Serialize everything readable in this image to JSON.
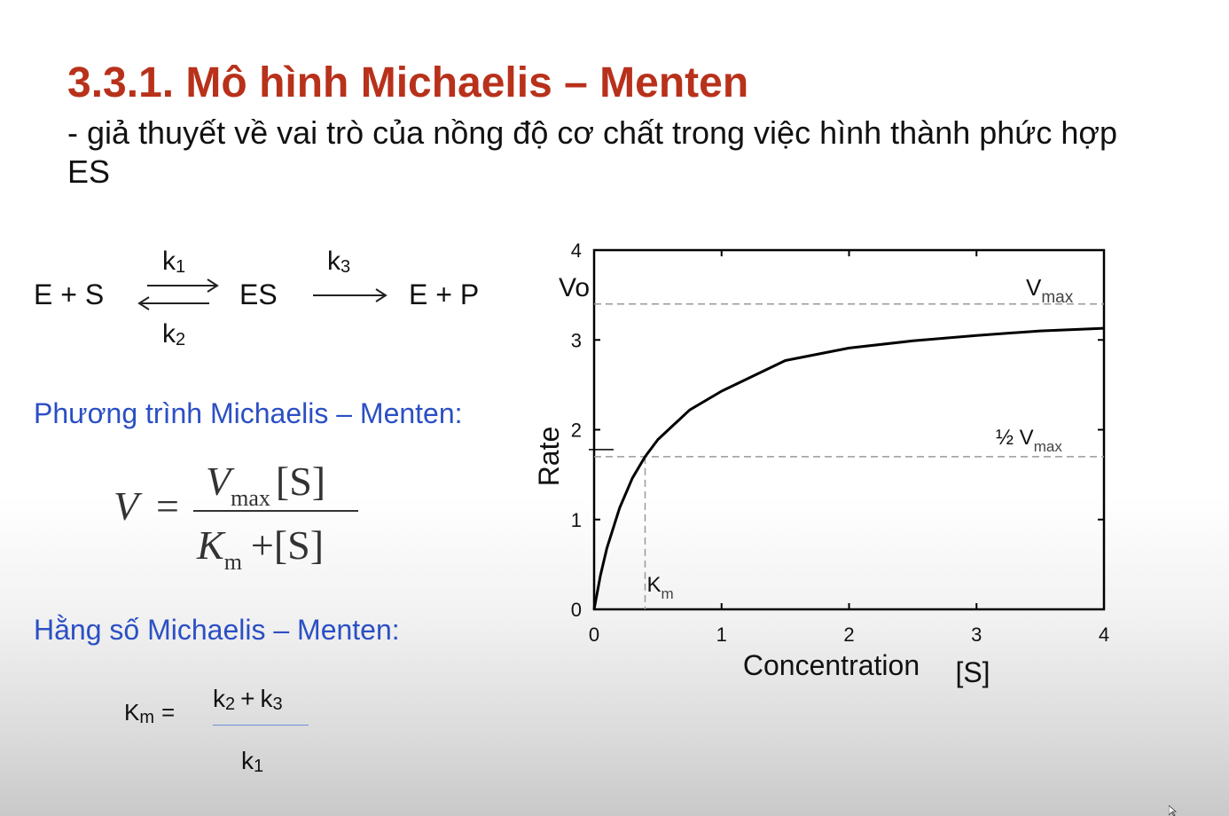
{
  "slide": {
    "title": "3.3.1. Mô hình Michaelis – Menten",
    "subtitle": "- giả thuyết về vai trò của nồng độ cơ chất trong việc hình thành phức hợp ES"
  },
  "reaction": {
    "reactants": "E + S",
    "k1": "k",
    "k1_sub": "1",
    "k2": "k",
    "k2_sub": "2",
    "complex": "ES",
    "k3": "k",
    "k3_sub": "3",
    "products": "E + P"
  },
  "equation_section": {
    "heading": "Phương trình Michaelis – Menten:",
    "lhs": "V",
    "equals": "=",
    "num_V": "V",
    "num_V_sub": "max",
    "num_S": "[S]",
    "den_K": "K",
    "den_K_sub": "m",
    "den_rest": "+[S]"
  },
  "constant_section": {
    "heading": "Hằng số Michaelis – Menten:",
    "lhs": "K",
    "lhs_sub": "m",
    "lhs_eq": "=",
    "num_a": "k",
    "num_a_sub": "2",
    "plus": "+",
    "num_b": "k",
    "num_b_sub": "3",
    "den": "k",
    "den_sub": "1"
  },
  "chart_data": {
    "type": "line",
    "xlabel": "Concentration",
    "xlabel_unit": "[S]",
    "ylabel": "Rate",
    "y_axis_top_label": "Vo",
    "xlim": [
      0,
      4
    ],
    "ylim": [
      0,
      4
    ],
    "x_ticks": [
      "0",
      "1",
      "2",
      "3",
      "4"
    ],
    "y_ticks": [
      "0",
      "1",
      "2",
      "3",
      "4"
    ],
    "Vmax": 3.4,
    "Km": 0.4,
    "series": [
      {
        "x": [
          0,
          0.05,
          0.1,
          0.2,
          0.3,
          0.4,
          0.5,
          0.75,
          1.0,
          1.5,
          2.0,
          2.5,
          3.0,
          3.5,
          4.0
        ],
        "y": [
          0,
          0.38,
          0.68,
          1.13,
          1.46,
          1.7,
          1.89,
          2.22,
          2.43,
          2.77,
          2.91,
          2.99,
          3.05,
          3.1,
          3.13
        ]
      }
    ],
    "annotations": {
      "vmax": "V",
      "vmax_sub": "max",
      "half_vmax": "½ V",
      "half_vmax_sub": "max",
      "km": "K",
      "km_sub": "m"
    },
    "grid": false,
    "colors": {
      "curve": "#000000",
      "dashed": "#999999"
    }
  }
}
